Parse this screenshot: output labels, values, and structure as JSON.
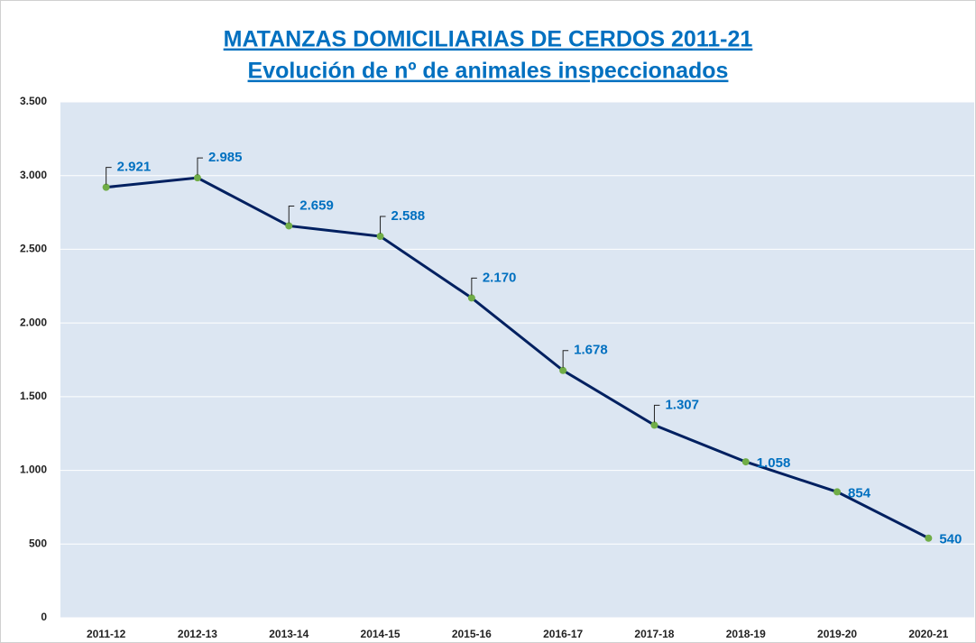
{
  "chart_data": {
    "type": "line",
    "title": "MATANZAS DOMICILIARIAS DE CERDOS 2011-21",
    "subtitle": "Evolución de nº de animales inspeccionados",
    "categories": [
      "2011-12",
      "2012-13",
      "2013-14",
      "2014-15",
      "2015-16",
      "2016-17",
      "2017-18",
      "2018-19",
      "2019-20",
      "2020-21"
    ],
    "series": [
      {
        "name": "Animales inspeccionados",
        "color": "#002060",
        "marker_color": "#70ad47",
        "values": [
          2921,
          2985,
          2659,
          2588,
          2170,
          1678,
          1307,
          1058,
          854,
          540
        ],
        "value_labels": [
          "2.921",
          "2.985",
          "2.659",
          "2.588",
          "2.170",
          "1.678",
          "1.307",
          "1.058",
          "854",
          "540"
        ]
      }
    ],
    "ylim": [
      0,
      3500
    ],
    "yticks": [
      0,
      500,
      {
        "value": 1000,
        "label": "1.000"
      },
      {
        "value": 1500,
        "label": "1.500"
      },
      {
        "value": 2000,
        "label": "2.000"
      },
      {
        "value": 2500,
        "label": "2.500"
      },
      {
        "value": 3000,
        "label": "3.000"
      },
      {
        "value": 3500,
        "label": "3.500"
      }
    ],
    "grid": true
  }
}
